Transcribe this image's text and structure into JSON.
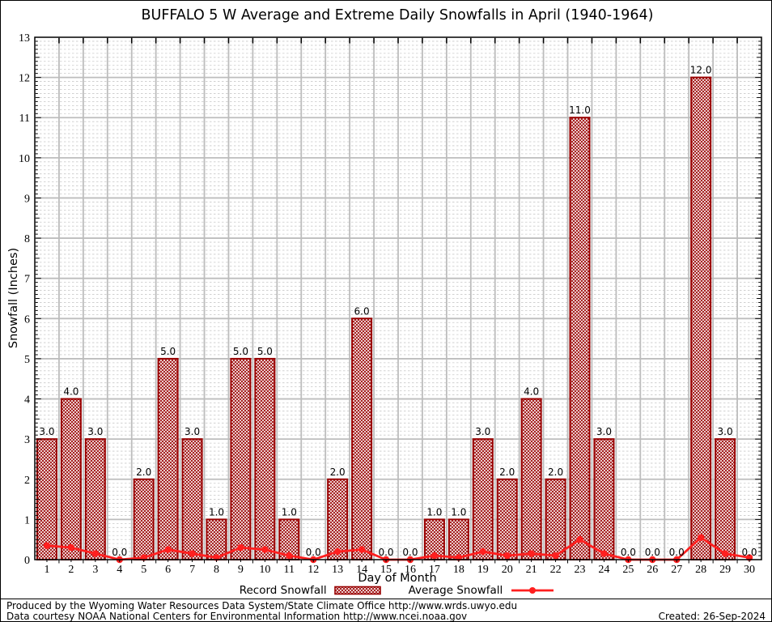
{
  "chart_data": {
    "type": "bar",
    "title": "BUFFALO 5 W Average and Extreme Daily Snowfalls in April (1940-1964)",
    "xlabel": "Day of Month",
    "ylabel": "Snowfall (Inches)",
    "ylim": [
      0,
      13
    ],
    "yticks": [
      0,
      1,
      2,
      3,
      4,
      5,
      6,
      7,
      8,
      9,
      10,
      11,
      12,
      13
    ],
    "grid": true,
    "legend_position": "bottom",
    "x": [
      1,
      2,
      3,
      4,
      5,
      6,
      7,
      8,
      9,
      10,
      11,
      12,
      13,
      14,
      15,
      16,
      17,
      18,
      19,
      20,
      21,
      22,
      23,
      24,
      25,
      26,
      27,
      28,
      29,
      30
    ],
    "series": [
      {
        "name": "Record Snowfall",
        "type": "bar",
        "color": "#990000",
        "values": [
          3,
          4,
          3,
          0,
          2,
          5,
          3,
          1,
          5,
          5,
          1,
          0,
          2,
          6,
          0,
          0,
          1,
          1,
          3,
          2,
          4,
          2,
          11,
          3,
          0,
          0,
          0,
          12,
          3,
          0
        ],
        "labels": [
          "3.0",
          "4.0",
          "3.0",
          "0.0",
          "2.0",
          "5.0",
          "3.0",
          "1.0",
          "5.0",
          "5.0",
          "1.0",
          "0.0",
          "2.0",
          "6.0",
          "0.0",
          "0.0",
          "1.0",
          "1.0",
          "3.0",
          "2.0",
          "4.0",
          "2.0",
          "11.0",
          "3.0",
          "0.0",
          "0.0",
          "0.0",
          "12.0",
          "3.0",
          "0.0"
        ]
      },
      {
        "name": "Average Snowfall",
        "type": "line",
        "color": "#ff1f1f",
        "values": [
          0.35,
          0.3,
          0.15,
          0,
          0.05,
          0.25,
          0.15,
          0.05,
          0.3,
          0.25,
          0.1,
          0,
          0.2,
          0.25,
          0,
          0,
          0.1,
          0.05,
          0.2,
          0.1,
          0.15,
          0.1,
          0.5,
          0.15,
          0,
          0,
          0,
          0.55,
          0.15,
          0.05
        ]
      }
    ]
  },
  "legend": {
    "record_label": "Record Snowfall",
    "average_label": "Average Snowfall"
  },
  "footer": {
    "line1": "Produced by the Wyoming Water Resources Data System/State Climate Office http://www.wrds.uwyo.edu",
    "line2": "Data courtesy NOAA National Centers for Environmental Information http://www.ncei.noaa.gov",
    "created": "Created: 26-Sep-2024"
  },
  "colors": {
    "bar": "#990000",
    "line": "#ff1f1f",
    "grid_major": "#bdbdbd",
    "grid_minor": "#c9c9c9",
    "axis": "#000000"
  }
}
